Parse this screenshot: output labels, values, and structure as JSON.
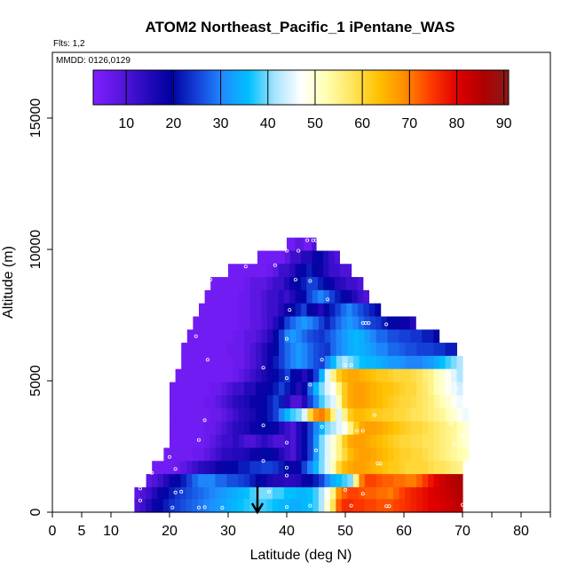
{
  "chart_data": {
    "type": "heatmap",
    "title": "ATOM2 Northeast_Pacific_1 iPentane_WAS",
    "subtitle_flights": "Flts: 1,2",
    "subtitle_dates": "MMDD: 0126,0129",
    "xlabel": "Latitude (deg N)",
    "ylabel": "Altitude (m)",
    "xlim": [
      0,
      85
    ],
    "ylim": [
      0,
      17500
    ],
    "x_ticks": [
      0,
      5,
      10,
      20,
      30,
      40,
      50,
      60,
      70,
      80
    ],
    "x_ticks_unlabeled": [
      75,
      85
    ],
    "y_ticks": [
      0,
      5000,
      10000,
      15000
    ],
    "colorbar": {
      "min": 3,
      "max": 91,
      "ticks": [
        10,
        20,
        30,
        40,
        50,
        60,
        70,
        80,
        90
      ],
      "colors": [
        "#7f1fff",
        "#5a16e0",
        "#2a0bbf",
        "#00009f",
        "#1540d8",
        "#1f8cff",
        "#00c0ff",
        "#a8e4ff",
        "#ffffff",
        "#ffffb0",
        "#ffe45a",
        "#ffc000",
        "#ff8c00",
        "#ff3a00",
        "#e00000",
        "#b00000",
        "#8a1a1a"
      ]
    },
    "marker": {
      "latitude": 35,
      "altitude": 500,
      "symbol": "down-arrow"
    },
    "rows": [
      {
        "alt": 10200,
        "lat_start": 40,
        "lat_end": 45,
        "values": [
          5,
          5,
          8,
          8,
          5,
          5,
          10
        ]
      },
      {
        "alt": 9700,
        "lat_start": 35,
        "lat_end": 49,
        "values": [
          5,
          5,
          5,
          5,
          5,
          8,
          12,
          12,
          15,
          15,
          18,
          20,
          15,
          12,
          10
        ]
      },
      {
        "alt": 9200,
        "lat_start": 30,
        "lat_end": 51,
        "values": [
          5,
          5,
          5,
          5,
          5,
          5,
          5,
          6,
          8,
          12,
          12,
          14,
          18,
          20,
          22,
          20,
          18,
          15,
          12,
          12,
          10,
          10
        ]
      },
      {
        "alt": 8700,
        "lat_start": 27,
        "lat_end": 53,
        "values": [
          5,
          5,
          5,
          5,
          5,
          5,
          6,
          8,
          8,
          8,
          10,
          12,
          12,
          15,
          18,
          20,
          22,
          25,
          25,
          22,
          20,
          18,
          15,
          14,
          12,
          12,
          10
        ]
      },
      {
        "alt": 8200,
        "lat_start": 26,
        "lat_end": 54,
        "values": [
          5,
          5,
          5,
          5,
          5,
          5,
          6,
          6,
          8,
          8,
          10,
          12,
          12,
          14,
          12,
          15,
          18,
          20,
          25,
          28,
          30,
          28,
          25,
          22,
          20,
          18,
          15,
          12,
          10
        ]
      },
      {
        "alt": 7700,
        "lat_start": 25,
        "lat_end": 56,
        "values": [
          5,
          5,
          5,
          5,
          5,
          5,
          5,
          6,
          6,
          8,
          8,
          10,
          12,
          12,
          15,
          18,
          20,
          22,
          25,
          20,
          18,
          15,
          20,
          22,
          25,
          28,
          30,
          28,
          26,
          24,
          22,
          20
        ]
      },
      {
        "alt": 7200,
        "lat_start": 24,
        "lat_end": 62,
        "values": [
          5,
          5,
          5,
          5,
          5,
          5,
          5,
          5,
          6,
          6,
          8,
          8,
          10,
          12,
          15,
          20,
          25,
          28,
          30,
          32,
          30,
          28,
          25,
          22,
          25,
          28,
          30,
          32,
          30,
          28,
          26,
          25,
          24,
          22,
          20,
          20,
          18,
          18,
          15
        ]
      },
      {
        "alt": 6700,
        "lat_start": 23,
        "lat_end": 66,
        "values": [
          5,
          5,
          5,
          5,
          5,
          5,
          5,
          5,
          6,
          6,
          8,
          8,
          10,
          12,
          15,
          20,
          25,
          30,
          32,
          30,
          28,
          26,
          25,
          24,
          26,
          28,
          30,
          32,
          34,
          35,
          34,
          32,
          30,
          28,
          28,
          26,
          26,
          25,
          25,
          24,
          24,
          22,
          22,
          20
        ]
      },
      {
        "alt": 6200,
        "lat_start": 22,
        "lat_end": 69,
        "values": [
          5,
          5,
          5,
          5,
          5,
          5,
          5,
          5,
          6,
          6,
          6,
          8,
          10,
          12,
          15,
          18,
          20,
          25,
          28,
          30,
          32,
          30,
          28,
          26,
          25,
          24,
          28,
          30,
          32,
          34,
          35,
          34,
          33,
          32,
          30,
          30,
          28,
          28,
          27,
          26,
          26,
          25,
          25,
          25,
          24,
          24,
          22,
          22
        ]
      },
      {
        "alt": 5700,
        "lat_start": 22,
        "lat_end": 70,
        "values": [
          5,
          5,
          5,
          5,
          5,
          5,
          5,
          5,
          5,
          6,
          6,
          8,
          10,
          12,
          15,
          18,
          22,
          25,
          28,
          30,
          32,
          30,
          28,
          26,
          25,
          30,
          35,
          40,
          42,
          40,
          38,
          36,
          35,
          35,
          34,
          33,
          32,
          32,
          31,
          30,
          30,
          30,
          31,
          32,
          34,
          36,
          38,
          40,
          42
        ]
      },
      {
        "alt": 5200,
        "lat_start": 21,
        "lat_end": 70,
        "values": [
          5,
          5,
          5,
          5,
          5,
          5,
          5,
          5,
          5,
          5,
          6,
          8,
          10,
          12,
          14,
          16,
          18,
          20,
          22,
          25,
          20,
          18,
          15,
          20,
          25,
          35,
          45,
          55,
          62,
          65,
          66,
          66,
          65,
          64,
          63,
          62,
          62,
          61,
          60,
          60,
          60,
          59,
          58,
          56,
          55,
          52,
          50,
          48,
          45,
          42
        ]
      },
      {
        "alt": 4700,
        "lat_start": 20,
        "lat_end": 70,
        "values": [
          5,
          5,
          5,
          5,
          5,
          5,
          5,
          6,
          6,
          8,
          10,
          12,
          12,
          15,
          15,
          18,
          18,
          20,
          22,
          25,
          22,
          20,
          15,
          20,
          28,
          35,
          40,
          45,
          48,
          55,
          62,
          66,
          67,
          67,
          66,
          65,
          64,
          63,
          63,
          62,
          61,
          60,
          60,
          58,
          57,
          55,
          52,
          50,
          48,
          46,
          44
        ]
      },
      {
        "alt": 4200,
        "lat_start": 20,
        "lat_end": 70,
        "values": [
          5,
          5,
          5,
          5,
          5,
          5,
          6,
          6,
          8,
          10,
          12,
          14,
          15,
          16,
          18,
          18,
          20,
          22,
          25,
          22,
          15,
          10,
          10,
          15,
          25,
          30,
          38,
          42,
          45,
          52,
          62,
          66,
          67,
          67,
          66,
          65,
          64,
          63,
          62,
          61,
          60,
          60,
          59,
          58,
          57,
          56,
          54,
          52,
          50,
          48,
          46
        ]
      },
      {
        "alt": 3700,
        "lat_start": 20,
        "lat_end": 71,
        "values": [
          5,
          5,
          5,
          5,
          5,
          5,
          5,
          6,
          6,
          8,
          10,
          12,
          14,
          15,
          16,
          18,
          20,
          22,
          25,
          30,
          35,
          38,
          40,
          45,
          60,
          68,
          70,
          65,
          55,
          45,
          55,
          62,
          64,
          64,
          63,
          62,
          62,
          61,
          61,
          60,
          60,
          59,
          58,
          58,
          57,
          56,
          55,
          54,
          52,
          50,
          48,
          46
        ]
      },
      {
        "alt": 3200,
        "lat_start": 20,
        "lat_end": 71,
        "values": [
          5,
          5,
          5,
          5,
          5,
          5,
          6,
          6,
          8,
          10,
          12,
          14,
          15,
          16,
          18,
          18,
          20,
          20,
          18,
          15,
          12,
          10,
          15,
          20,
          25,
          30,
          35,
          40,
          42,
          45,
          48,
          55,
          62,
          66,
          67,
          67,
          66,
          65,
          64,
          63,
          62,
          61,
          60,
          60,
          59,
          58,
          57,
          56,
          55,
          54,
          52,
          50
        ]
      },
      {
        "alt": 2700,
        "lat_start": 20,
        "lat_end": 71,
        "values": [
          5,
          5,
          5,
          5,
          5,
          5,
          6,
          8,
          10,
          12,
          12,
          14,
          12,
          10,
          10,
          12,
          14,
          12,
          10,
          10,
          12,
          10,
          15,
          20,
          25,
          32,
          40,
          45,
          50,
          55,
          62,
          66,
          67,
          67,
          66,
          65,
          64,
          63,
          62,
          61,
          60,
          60,
          59,
          59,
          58,
          58,
          57,
          56,
          55,
          54,
          52,
          50
        ]
      },
      {
        "alt": 2200,
        "lat_start": 19,
        "lat_end": 71,
        "values": [
          5,
          5,
          5,
          5,
          5,
          6,
          6,
          8,
          10,
          12,
          14,
          14,
          15,
          15,
          16,
          18,
          18,
          20,
          20,
          18,
          15,
          12,
          10,
          15,
          20,
          25,
          32,
          40,
          45,
          50,
          55,
          60,
          64,
          66,
          67,
          67,
          66,
          65,
          64,
          63,
          62,
          61,
          61,
          60,
          60,
          59,
          58,
          57,
          56,
          55,
          54,
          53,
          52
        ]
      },
      {
        "alt": 1700,
        "lat_start": 17,
        "lat_end": 70,
        "values": [
          5,
          5,
          5,
          5,
          6,
          8,
          10,
          12,
          14,
          15,
          16,
          18,
          18,
          20,
          20,
          22,
          22,
          24,
          24,
          25,
          25,
          24,
          22,
          20,
          18,
          20,
          25,
          30,
          35,
          40,
          45,
          52,
          60,
          64,
          66,
          67,
          67,
          66,
          65,
          64,
          63,
          62,
          62,
          61,
          60,
          60,
          60,
          60,
          59,
          58,
          58,
          57,
          56,
          55
        ]
      },
      {
        "alt": 1200,
        "lat_start": 16,
        "lat_end": 70,
        "values": [
          8,
          10,
          12,
          15,
          18,
          20,
          22,
          25,
          28,
          30,
          30,
          30,
          28,
          28,
          26,
          26,
          25,
          24,
          22,
          20,
          18,
          16,
          15,
          15,
          14,
          14,
          15,
          18,
          20,
          22,
          25,
          30,
          34,
          36,
          38,
          40,
          55,
          70,
          74,
          74,
          73,
          72,
          72,
          71,
          71,
          70,
          70,
          72,
          75,
          78,
          80,
          82,
          84,
          85,
          86
        ]
      },
      {
        "alt": 700,
        "lat_start": 14,
        "lat_end": 70,
        "values": [
          8,
          10,
          12,
          15,
          18,
          20,
          22,
          24,
          25,
          26,
          27,
          28,
          29,
          30,
          31,
          32,
          33,
          34,
          35,
          36,
          38,
          40,
          40,
          40,
          38,
          38,
          36,
          36,
          35,
          35,
          36,
          38,
          42,
          48,
          55,
          68,
          72,
          74,
          74,
          73,
          72,
          72,
          71,
          71,
          70,
          72,
          74,
          76,
          77,
          78,
          79,
          80,
          81,
          82,
          83,
          84,
          85
        ]
      },
      {
        "alt": 250,
        "lat_start": 14,
        "lat_end": 70,
        "values": [
          10,
          12,
          15,
          18,
          20,
          22,
          24,
          25,
          26,
          27,
          28,
          29,
          30,
          31,
          32,
          33,
          34,
          35,
          36,
          37,
          38,
          38,
          38,
          37,
          36,
          35,
          35,
          34,
          34,
          35,
          36,
          38,
          42,
          50,
          58,
          72,
          76,
          76,
          75,
          75,
          74,
          74,
          73,
          73,
          73,
          74,
          75,
          76,
          77,
          78,
          79,
          80,
          80,
          81,
          82,
          83,
          84
        ]
      }
    ],
    "samples": [
      [
        43.5,
        10350
      ],
      [
        44.5,
        10350
      ],
      [
        45,
        10350
      ],
      [
        40,
        9950
      ],
      [
        42,
        9950
      ],
      [
        33,
        9350
      ],
      [
        38,
        9400
      ],
      [
        27,
        8850
      ],
      [
        41.5,
        8850
      ],
      [
        44,
        8800
      ],
      [
        40.5,
        7700
      ],
      [
        47,
        8100
      ],
      [
        53,
        7200
      ],
      [
        53.5,
        7200
      ],
      [
        54,
        7200
      ],
      [
        57,
        7150
      ],
      [
        24.5,
        6700
      ],
      [
        40,
        6600
      ],
      [
        26.5,
        5800
      ],
      [
        36,
        5500
      ],
      [
        46,
        5800
      ],
      [
        50,
        5600
      ],
      [
        51,
        5600
      ],
      [
        40,
        5100
      ],
      [
        44,
        4850
      ],
      [
        69,
        4700
      ],
      [
        70,
        4200
      ],
      [
        55,
        3700
      ],
      [
        68,
        3350
      ],
      [
        26,
        3500
      ],
      [
        36,
        3300
      ],
      [
        46,
        3250
      ],
      [
        52,
        3100
      ],
      [
        53,
        3100
      ],
      [
        70,
        2900
      ],
      [
        25,
        2750
      ],
      [
        40,
        2650
      ],
      [
        68.5,
        2600
      ],
      [
        45,
        2350
      ],
      [
        20,
        2100
      ],
      [
        36,
        1950
      ],
      [
        40,
        1700
      ],
      [
        55.5,
        1850
      ],
      [
        56,
        1850
      ],
      [
        70.5,
        1950
      ],
      [
        21,
        1650
      ],
      [
        17,
        1500
      ],
      [
        40,
        1400
      ],
      [
        15,
        900
      ],
      [
        21,
        750
      ],
      [
        22,
        780
      ],
      [
        37,
        780
      ],
      [
        50,
        850
      ],
      [
        53,
        700
      ],
      [
        15,
        450
      ],
      [
        20.5,
        180
      ],
      [
        25,
        180
      ],
      [
        26,
        190
      ],
      [
        29,
        170
      ],
      [
        40,
        200
      ],
      [
        44,
        250
      ],
      [
        51,
        250
      ],
      [
        57,
        230
      ],
      [
        57.5,
        230
      ],
      [
        70,
        280
      ]
    ]
  }
}
